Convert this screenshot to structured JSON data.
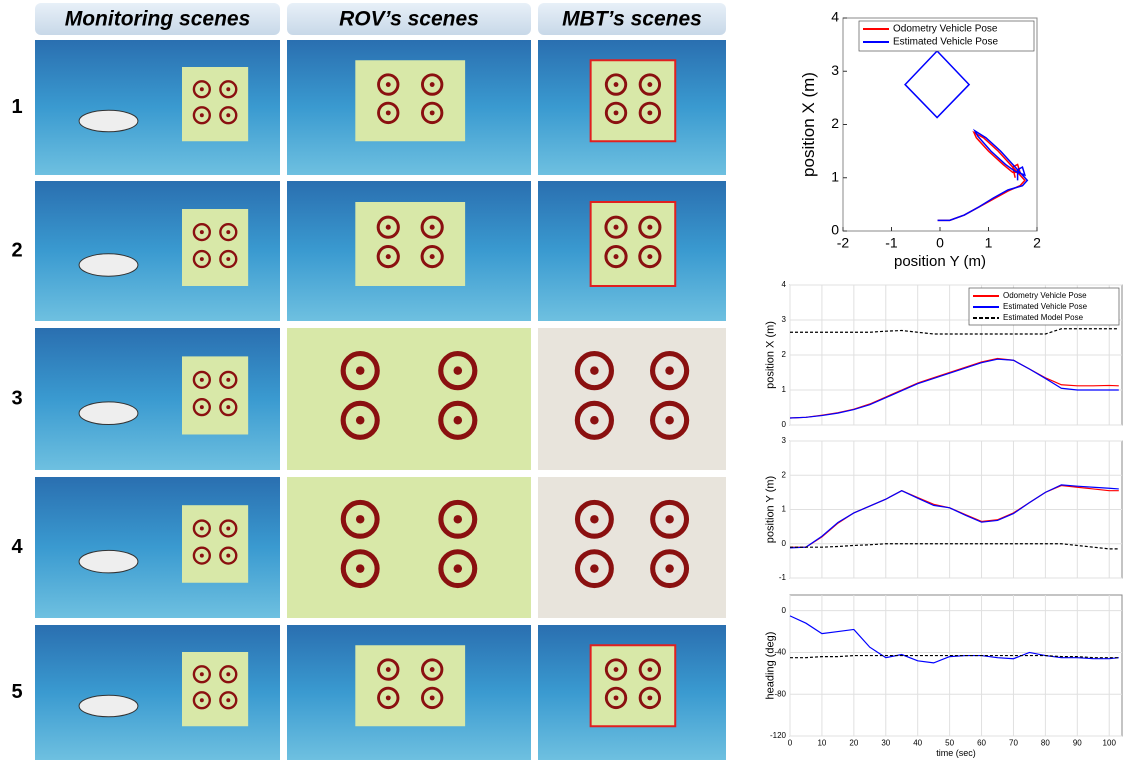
{
  "grid": {
    "columns": [
      "Monitoring scenes",
      "ROV’s scenes",
      "MBT’s scenes"
    ],
    "rows": [
      "1",
      "2",
      "3",
      "4",
      "5"
    ]
  },
  "chart_data": [
    {
      "type": "line",
      "xlabel": "position Y (m)",
      "ylabel": "position X (m)",
      "xlim": [
        -2,
        2
      ],
      "ylim": [
        0,
        4
      ],
      "xticks": [
        -2,
        -1,
        0,
        1,
        2
      ],
      "yticks": [
        0,
        1,
        2,
        3,
        4
      ],
      "grid": false,
      "legend": "upper right",
      "series": [
        {
          "name": "Odometry Vehicle Pose",
          "color": "#ff0000",
          "x": [
            -0.05,
            0.2,
            0.5,
            0.8,
            1.1,
            1.4,
            1.65,
            1.75,
            1.5,
            1.2,
            0.9,
            0.7,
            0.75,
            1.0,
            1.3,
            1.5,
            1.65,
            1.6,
            1.5,
            1.55
          ],
          "values": [
            0.2,
            0.2,
            0.3,
            0.45,
            0.6,
            0.75,
            0.85,
            0.95,
            1.2,
            1.5,
            1.75,
            1.85,
            1.75,
            1.5,
            1.25,
            1.1,
            1.1,
            1.25,
            1.2,
            1.0
          ]
        },
        {
          "name": "Estimated Vehicle Pose",
          "color": "#0000ff",
          "x": [
            -0.05,
            0.2,
            0.5,
            0.8,
            1.1,
            1.4,
            1.7,
            1.8,
            1.55,
            1.25,
            0.95,
            0.72,
            0.78,
            1.05,
            1.35,
            1.55,
            1.75,
            1.7,
            1.6,
            1.6
          ],
          "values": [
            0.2,
            0.2,
            0.3,
            0.45,
            0.62,
            0.77,
            0.85,
            0.95,
            1.2,
            1.5,
            1.75,
            1.88,
            1.78,
            1.5,
            1.25,
            1.12,
            1.05,
            1.2,
            1.15,
            0.95
          ]
        },
        {
          "color": "#0000ff",
          "x": [
            -0.06,
            0.6,
            -0.06,
            -0.72,
            -0.06
          ],
          "values": [
            3.38,
            2.75,
            2.13,
            2.75,
            3.38
          ]
        }
      ]
    },
    {
      "type": "line",
      "ylabel": "position X (m)",
      "xlim": [
        0,
        104
      ],
      "ylim": [
        0,
        4
      ],
      "yticks": [
        0,
        1,
        2,
        3,
        4
      ],
      "grid": true,
      "legend": "upper right",
      "x": [
        0,
        5,
        10,
        15,
        20,
        25,
        30,
        35,
        40,
        45,
        50,
        55,
        60,
        65,
        70,
        75,
        80,
        85,
        90,
        95,
        100,
        103
      ],
      "series": [
        {
          "name": "Odometry Vehicle Pose",
          "color": "#ff0000",
          "values": [
            0.2,
            0.22,
            0.28,
            0.35,
            0.45,
            0.6,
            0.8,
            1.0,
            1.2,
            1.35,
            1.5,
            1.65,
            1.8,
            1.9,
            1.85,
            1.6,
            1.35,
            1.15,
            1.12,
            1.12,
            1.13,
            1.12
          ]
        },
        {
          "name": "Estimated Vehicle Pose",
          "color": "#0000ff",
          "values": [
            0.2,
            0.22,
            0.27,
            0.34,
            0.44,
            0.58,
            0.78,
            0.98,
            1.18,
            1.33,
            1.48,
            1.63,
            1.78,
            1.88,
            1.85,
            1.6,
            1.33,
            1.05,
            1.0,
            1.0,
            1.0,
            1.0
          ]
        },
        {
          "name": "Estimated Model Pose",
          "color": "#000000",
          "dashed": true,
          "values": [
            2.65,
            2.65,
            2.65,
            2.65,
            2.65,
            2.65,
            2.68,
            2.7,
            2.65,
            2.6,
            2.6,
            2.6,
            2.6,
            2.6,
            2.6,
            2.6,
            2.6,
            2.75,
            2.75,
            2.75,
            2.75,
            2.75
          ]
        }
      ]
    },
    {
      "type": "line",
      "ylabel": "position Y (m)",
      "xlim": [
        0,
        104
      ],
      "ylim": [
        -1,
        3
      ],
      "yticks": [
        -1,
        0,
        1,
        2,
        3
      ],
      "grid": true,
      "x": [
        0,
        5,
        10,
        15,
        20,
        25,
        30,
        35,
        40,
        45,
        50,
        55,
        60,
        65,
        70,
        75,
        80,
        85,
        90,
        95,
        100,
        103
      ],
      "series": [
        {
          "color": "#ff0000",
          "values": [
            -0.1,
            -0.1,
            0.2,
            0.6,
            0.9,
            1.1,
            1.3,
            1.55,
            1.35,
            1.15,
            1.05,
            0.85,
            0.65,
            0.7,
            0.9,
            1.2,
            1.5,
            1.7,
            1.65,
            1.6,
            1.55,
            1.55
          ]
        },
        {
          "color": "#0000ff",
          "values": [
            -0.12,
            -0.1,
            0.22,
            0.62,
            0.9,
            1.1,
            1.3,
            1.55,
            1.33,
            1.12,
            1.05,
            0.83,
            0.63,
            0.68,
            0.88,
            1.2,
            1.5,
            1.72,
            1.68,
            1.65,
            1.62,
            1.6
          ]
        },
        {
          "color": "#000000",
          "dashed": true,
          "values": [
            -0.1,
            -0.1,
            -0.1,
            -0.08,
            -0.05,
            -0.03,
            0,
            0,
            0,
            0,
            0,
            0,
            0,
            0,
            0,
            0,
            0,
            0,
            -0.05,
            -0.1,
            -0.15,
            -0.15
          ]
        }
      ]
    },
    {
      "type": "line",
      "ylabel": "heading (deg)",
      "xlabel": "time (sec)",
      "xlim": [
        0,
        104
      ],
      "ylim": [
        -120,
        15
      ],
      "xticks": [
        0,
        10,
        20,
        30,
        40,
        50,
        60,
        70,
        80,
        90,
        100
      ],
      "yticks": [
        -120,
        -80,
        -40,
        0
      ],
      "grid": true,
      "x": [
        0,
        5,
        10,
        15,
        20,
        25,
        30,
        35,
        40,
        45,
        50,
        55,
        60,
        65,
        70,
        75,
        80,
        85,
        90,
        95,
        100,
        103
      ],
      "series": [
        {
          "color": "#0000ff",
          "values": [
            -5,
            -12,
            -22,
            -20,
            -18,
            -35,
            -45,
            -42,
            -48,
            -50,
            -44,
            -43,
            -43,
            -45,
            -46,
            -40,
            -43,
            -45,
            -45,
            -46,
            -46,
            -45
          ]
        },
        {
          "color": "#000000",
          "dashed": true,
          "values": [
            -45,
            -45,
            -44,
            -44,
            -43,
            -43,
            -43,
            -43,
            -43,
            -43,
            -43,
            -43,
            -43,
            -43,
            -43,
            -43,
            -43,
            -44,
            -44,
            -45,
            -45,
            -45
          ]
        }
      ]
    }
  ]
}
